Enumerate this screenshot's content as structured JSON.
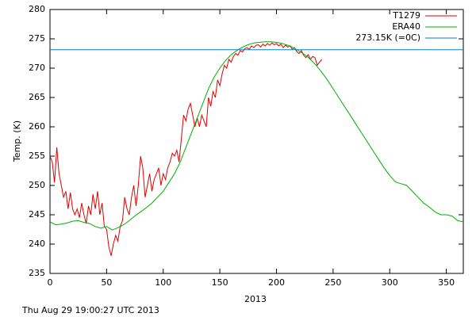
{
  "chart_data": {
    "type": "line",
    "x_label": "2013",
    "y_label": "Temp. (K)",
    "timestamp": "Thu Aug 29 19:00:27 UTC 2013",
    "xlim": [
      0,
      365
    ],
    "xticks": [
      0,
      50,
      100,
      150,
      200,
      250,
      300,
      350
    ],
    "ylim": [
      235,
      280
    ],
    "yticks": [
      235,
      240,
      245,
      250,
      255,
      260,
      265,
      270,
      275,
      280
    ],
    "legend": "upper right",
    "series": [
      {
        "name": "T1279",
        "color": "#e00000",
        "x": [
          0,
          2,
          4,
          6,
          8,
          10,
          12,
          14,
          16,
          18,
          20,
          22,
          24,
          26,
          28,
          30,
          32,
          34,
          36,
          38,
          40,
          42,
          44,
          46,
          48,
          50,
          52,
          54,
          56,
          58,
          60,
          62,
          64,
          66,
          68,
          70,
          72,
          74,
          76,
          78,
          80,
          82,
          84,
          86,
          88,
          90,
          92,
          94,
          96,
          98,
          100,
          102,
          104,
          106,
          108,
          110,
          112,
          114,
          116,
          118,
          120,
          122,
          124,
          126,
          128,
          130,
          132,
          134,
          136,
          138,
          140,
          142,
          144,
          146,
          148,
          150,
          152,
          154,
          156,
          158,
          160,
          162,
          164,
          166,
          168,
          170,
          172,
          174,
          176,
          178,
          180,
          182,
          184,
          186,
          188,
          190,
          192,
          194,
          196,
          198,
          200,
          202,
          204,
          206,
          208,
          210,
          212,
          214,
          216,
          218,
          220,
          222,
          224,
          226,
          228,
          230,
          232,
          234,
          236,
          238,
          240
        ],
        "values": [
          255,
          254,
          250.5,
          256.5,
          252,
          250,
          248,
          249,
          246,
          248.8,
          246,
          245,
          246,
          244.5,
          247,
          245,
          243.5,
          246.5,
          245,
          248.5,
          246,
          249,
          245,
          247,
          243,
          242.5,
          239.5,
          238,
          240,
          241.5,
          240.5,
          243,
          244,
          248,
          246,
          245,
          248,
          250,
          246.5,
          250,
          255,
          253,
          248,
          250,
          252,
          249,
          251,
          252,
          253,
          250,
          252,
          251,
          253,
          254,
          255.5,
          255,
          256,
          254,
          258,
          262,
          261,
          263,
          264,
          262,
          260,
          261.5,
          260,
          262,
          261,
          260,
          265,
          263.5,
          266,
          265,
          268,
          267,
          269,
          270.5,
          270,
          271.5,
          271,
          272,
          272.5,
          272.2,
          273,
          272.8,
          273.3,
          273.5,
          273.2,
          273.8,
          273.5,
          273.9,
          274,
          273.6,
          274.1,
          273.8,
          274.2,
          273.9,
          274.3,
          274,
          274.2,
          273.8,
          274.1,
          273.5,
          273.9,
          273.6,
          273.8,
          273.2,
          273.5,
          272.8,
          272.5,
          273,
          272.2,
          271.8,
          272.3,
          271.5,
          272,
          271.8,
          270.5,
          271,
          271.5
        ]
      },
      {
        "name": "ERA40",
        "color": "#00b000",
        "x": [
          0,
          5,
          10,
          15,
          20,
          25,
          30,
          35,
          40,
          45,
          50,
          55,
          60,
          65,
          70,
          75,
          80,
          85,
          90,
          95,
          100,
          105,
          110,
          115,
          120,
          125,
          130,
          135,
          140,
          145,
          150,
          155,
          160,
          165,
          170,
          175,
          180,
          185,
          190,
          195,
          200,
          205,
          210,
          215,
          220,
          225,
          230,
          235,
          240,
          245,
          250,
          255,
          260,
          265,
          270,
          275,
          280,
          285,
          290,
          295,
          300,
          305,
          310,
          315,
          320,
          325,
          330,
          335,
          340,
          345,
          350,
          355,
          360,
          365
        ],
        "values": [
          243.8,
          243.3,
          243.4,
          243.6,
          243.9,
          244,
          243.7,
          243.5,
          243,
          242.7,
          243,
          242.4,
          242.8,
          243.3,
          244,
          244.8,
          245.5,
          246.2,
          247,
          248,
          249,
          250.5,
          252,
          254,
          256.5,
          259,
          261.5,
          264,
          266.5,
          268.5,
          270,
          271.3,
          272.3,
          273,
          273.6,
          274,
          274.3,
          274.4,
          274.5,
          274.5,
          274.4,
          274.2,
          273.9,
          273.5,
          272.9,
          272.3,
          271.5,
          270.5,
          269.3,
          268,
          266.5,
          265,
          263.5,
          262,
          260.5,
          259,
          257.5,
          256,
          254.5,
          253,
          251.7,
          250.6,
          250.3,
          250,
          249,
          248,
          247,
          246.3,
          245.5,
          245,
          245,
          244.8,
          244,
          243.8
        ]
      },
      {
        "name": "273.15K (=0C)",
        "color": "#0080c0",
        "x": [
          0,
          365
        ],
        "values": [
          273.15,
          273.15
        ]
      }
    ]
  }
}
